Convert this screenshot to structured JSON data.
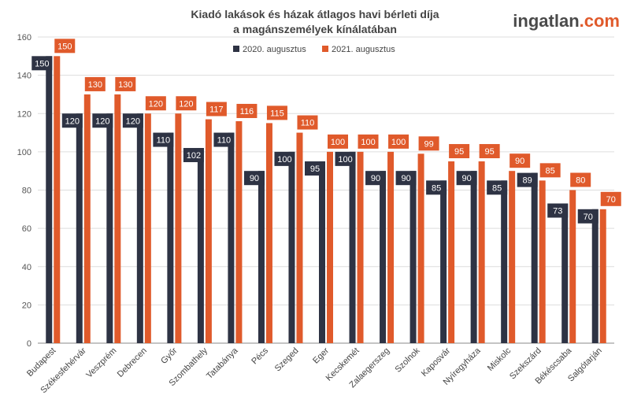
{
  "brand": {
    "name": "ingatlan",
    "tld": ".com"
  },
  "colors": {
    "series_2020": "#2e3344",
    "series_2021": "#e05a2b",
    "grid": "#dddddd",
    "axis": "#888888"
  },
  "chart_data": {
    "type": "bar",
    "title": [
      "Kiadó lakások és házak átlagos havi bérleti díja",
      "a magánszemélyek kínálatában"
    ],
    "xlabel": "",
    "ylabel": "",
    "ylim": [
      0,
      160
    ],
    "yticks": [
      0,
      20,
      40,
      60,
      80,
      100,
      120,
      140,
      160
    ],
    "grid": true,
    "legend_position": "top-center",
    "categories": [
      "Budapest",
      "Székesfehérvár",
      "Veszprém",
      "Debrecen",
      "Győr",
      "Szombathely",
      "Tatabánya",
      "Pécs",
      "Szeged",
      "Eger",
      "Kecskemét",
      "Zalaegerszeg",
      "Szolnok",
      "Kaposvár",
      "Nyíregyháza",
      "Miskolc",
      "Szekszárd",
      "Békéscsaba",
      "Salgótarján"
    ],
    "series": [
      {
        "name": "2020. augusztus",
        "values": [
          150,
          120,
          120,
          120,
          110,
          102,
          110,
          90,
          100,
          95,
          100,
          90,
          90,
          85,
          90,
          85,
          89,
          73,
          70
        ]
      },
      {
        "name": "2021. augusztus",
        "values": [
          150,
          130,
          130,
          120,
          120,
          117,
          116,
          115,
          110,
          100,
          100,
          100,
          99,
          95,
          95,
          90,
          85,
          80,
          70
        ]
      }
    ]
  }
}
